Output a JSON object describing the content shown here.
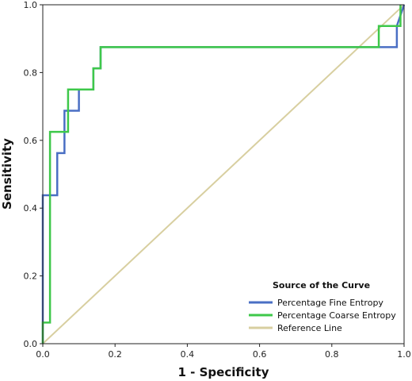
{
  "chart_data": {
    "type": "line",
    "xlabel": "1 - Specificity",
    "ylabel": "Sensitivity",
    "xlim": [
      0,
      1
    ],
    "ylim": [
      0,
      1
    ],
    "x_ticks": [
      "0.0",
      "0.2",
      "0.4",
      "0.6",
      "0.8",
      "1.0"
    ],
    "y_ticks": [
      "0.0",
      "0.2",
      "0.4",
      "0.6",
      "0.8",
      "1.0"
    ],
    "grid": false,
    "legend": {
      "title": "Source of the Curve",
      "position": "bottom-right"
    },
    "series": [
      {
        "name": "Percentage Fine Entropy",
        "color": "#4a6fc4",
        "x": [
          0,
          0,
          0.02,
          0.02,
          0.04,
          0.04,
          0.06,
          0.06,
          0.1,
          0.1,
          0.14,
          0.14,
          0.16,
          0.16,
          0.98,
          0.98,
          1.0
        ],
        "y": [
          0,
          0.438,
          0.438,
          0.438,
          0.438,
          0.5625,
          0.5625,
          0.6875,
          0.6875,
          0.75,
          0.75,
          0.8125,
          0.8125,
          0.875,
          0.875,
          0.9375,
          1.0
        ]
      },
      {
        "name": "Percentage Coarse Entropy",
        "color": "#3ec84a",
        "x": [
          0,
          0,
          0.02,
          0.02,
          0.07,
          0.07,
          0.14,
          0.14,
          0.16,
          0.16,
          0.93,
          0.93,
          0.99,
          0.99
        ],
        "y": [
          0,
          0.0625,
          0.0625,
          0.625,
          0.625,
          0.75,
          0.75,
          0.8125,
          0.8125,
          0.875,
          0.875,
          0.9375,
          0.9375,
          1.0
        ]
      },
      {
        "name": "Reference Line",
        "color": "#d8cfa0",
        "x": [
          0,
          1
        ],
        "y": [
          0,
          1
        ]
      }
    ]
  }
}
